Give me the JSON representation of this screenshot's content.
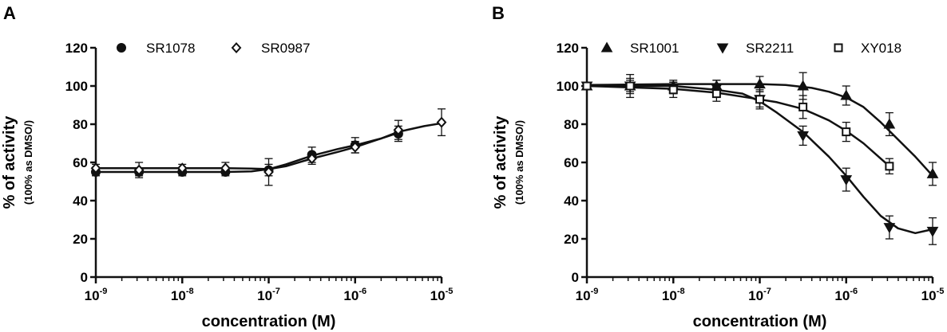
{
  "chart_data": [
    {
      "panel_label": "A",
      "type": "scatter",
      "xscale": "log",
      "xlabel": "concentration (M)",
      "ylabel": "% of activity",
      "ylabel_sub": "(100% as DMSO/)",
      "ylim": [
        0,
        120
      ],
      "yticks": [
        "0",
        "20",
        "40",
        "60",
        "80",
        "100",
        "120"
      ],
      "xticks": [
        {
          "base": "10",
          "exp": "-9"
        },
        {
          "base": "10",
          "exp": "-8"
        },
        {
          "base": "10",
          "exp": "-7"
        },
        {
          "base": "10",
          "exp": "-6"
        },
        {
          "base": "10",
          "exp": "-5"
        }
      ],
      "xlim_log": [
        -9,
        -5
      ],
      "legend_position": "top-left",
      "series": [
        {
          "name": "SR1078",
          "marker": "circle-filled",
          "x": [
            -9,
            -8.5,
            -8,
            -7.5,
            -7,
            -6.5,
            -6,
            -5.5
          ],
          "y": [
            55,
            55,
            55,
            55,
            56,
            64,
            69,
            75
          ],
          "err": [
            2,
            2,
            2,
            2,
            3,
            4,
            4,
            4
          ],
          "fit": [
            [
              -9,
              55
            ],
            [
              -8,
              55
            ],
            [
              -7.5,
              55
            ],
            [
              -7.2,
              55.3
            ],
            [
              -7,
              56.5
            ],
            [
              -6.8,
              59
            ],
            [
              -6.5,
              63.5
            ],
            [
              -6.2,
              67
            ],
            [
              -6,
              69
            ],
            [
              -5.7,
              72.5
            ],
            [
              -5.5,
              75.5
            ]
          ]
        },
        {
          "name": "SR0987",
          "marker": "diamond-open",
          "x": [
            -9,
            -8.5,
            -8,
            -7.5,
            -7,
            -6.5,
            -6,
            -5.5,
            -5
          ],
          "y": [
            57,
            56,
            57,
            57,
            55,
            62,
            68,
            77,
            81
          ],
          "err": [
            2,
            4,
            2,
            3,
            7,
            3,
            3,
            5,
            7
          ],
          "fit": [
            [
              -9,
              57
            ],
            [
              -8,
              57
            ],
            [
              -7.5,
              57
            ],
            [
              -7.2,
              56.8
            ],
            [
              -7,
              56.5
            ],
            [
              -6.8,
              58
            ],
            [
              -6.5,
              62
            ],
            [
              -6.2,
              65.5
            ],
            [
              -6,
              68
            ],
            [
              -5.7,
              72.5
            ],
            [
              -5.5,
              76
            ],
            [
              -5.2,
              79
            ],
            [
              -5,
              80.5
            ]
          ]
        }
      ]
    },
    {
      "panel_label": "B",
      "type": "scatter",
      "xscale": "log",
      "xlabel": "concentration (M)",
      "ylabel": "% of activity",
      "ylabel_sub": "(100% as DMSO/)",
      "ylim": [
        0,
        120
      ],
      "yticks": [
        "0",
        "20",
        "40",
        "60",
        "80",
        "100",
        "120"
      ],
      "xticks": [
        {
          "base": "10",
          "exp": "-9"
        },
        {
          "base": "10",
          "exp": "-8"
        },
        {
          "base": "10",
          "exp": "-7"
        },
        {
          "base": "10",
          "exp": "-6"
        },
        {
          "base": "10",
          "exp": "-5"
        }
      ],
      "xlim_log": [
        -9,
        -5
      ],
      "legend_position": "top",
      "series": [
        {
          "name": "SR1001",
          "marker": "triangle-up-filled",
          "x": [
            -9,
            -8.5,
            -8,
            -7.5,
            -7,
            -6.5,
            -6,
            -5.5,
            -5
          ],
          "y": [
            100,
            100,
            100,
            100,
            101,
            100,
            95,
            80,
            54
          ],
          "err": [
            2,
            3,
            3,
            3,
            4,
            7,
            5,
            6,
            6
          ],
          "fit": [
            [
              -9,
              100.5
            ],
            [
              -8,
              101
            ],
            [
              -7,
              101
            ],
            [
              -6.7,
              100.5
            ],
            [
              -6.4,
              99
            ],
            [
              -6.2,
              97
            ],
            [
              -6,
              94
            ],
            [
              -5.8,
              89
            ],
            [
              -5.6,
              81
            ],
            [
              -5.4,
              72
            ],
            [
              -5.2,
              63
            ],
            [
              -5,
              53
            ]
          ]
        },
        {
          "name": "SR2211",
          "marker": "triangle-down-filled",
          "x": [
            -9,
            -8.5,
            -8,
            -7.5,
            -7,
            -6.5,
            -6,
            -5.5,
            -5
          ],
          "y": [
            100,
            100,
            99,
            99,
            93,
            74,
            51,
            26,
            24
          ],
          "err": [
            2,
            4,
            3,
            4,
            5,
            5,
            6,
            6,
            7
          ],
          "fit": [
            [
              -9,
              100
            ],
            [
              -8,
              100
            ],
            [
              -7.5,
              98
            ],
            [
              -7.2,
              96
            ],
            [
              -7,
              92
            ],
            [
              -6.8,
              86
            ],
            [
              -6.5,
              76
            ],
            [
              -6.2,
              63
            ],
            [
              -6,
              53
            ],
            [
              -5.8,
              42
            ],
            [
              -5.6,
              32
            ],
            [
              -5.4,
              25.5
            ],
            [
              -5.2,
              23
            ],
            [
              -5,
              25
            ]
          ]
        },
        {
          "name": "XY018",
          "marker": "square-open",
          "x": [
            -9,
            -8.5,
            -8,
            -7.5,
            -7,
            -6.5,
            -6,
            -5.5
          ],
          "y": [
            100,
            100,
            98,
            96,
            93,
            89,
            76,
            58
          ],
          "err": [
            2,
            6,
            4,
            4,
            4,
            6,
            5,
            4
          ],
          "fit": [
            [
              -9,
              100
            ],
            [
              -8,
              98.5
            ],
            [
              -7.5,
              96.5
            ],
            [
              -7,
              93
            ],
            [
              -6.8,
              91.5
            ],
            [
              -6.5,
              88
            ],
            [
              -6.2,
              82
            ],
            [
              -6,
              76.5
            ],
            [
              -5.8,
              70
            ],
            [
              -5.6,
              62
            ],
            [
              -5.5,
              58
            ]
          ]
        }
      ]
    }
  ]
}
